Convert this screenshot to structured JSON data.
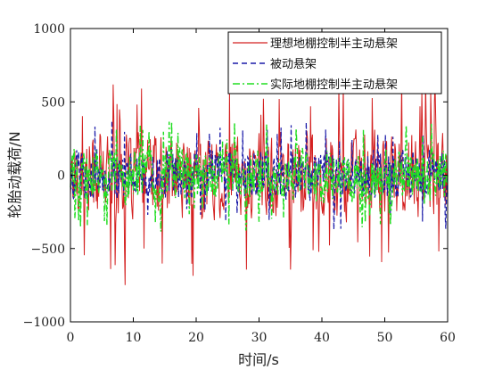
{
  "chart_data": {
    "type": "line",
    "xlabel": "时间/s",
    "ylabel": "轮胎动载荷/N",
    "xlim": [
      0,
      60
    ],
    "ylim": [
      -1000,
      1000
    ],
    "xticks": [
      "0",
      "10",
      "20",
      "30",
      "40",
      "50",
      "60"
    ],
    "yticks": [
      "1000",
      "500",
      "0",
      "−500",
      "−1000"
    ],
    "legend": "top-right",
    "grid": false,
    "sampling_note": "dense random oscillation sampled every 0.1 s",
    "series": [
      {
        "name": "理想地棚控制半主动悬架",
        "color": "#d42020",
        "style": "solid",
        "amplitude_peak": 850,
        "amplitude_typical": 350,
        "seed": 17
      },
      {
        "name": "被动悬架",
        "color": "#1a1aa8",
        "style": "dashed",
        "amplitude_peak": 480,
        "amplitude_typical": 200,
        "seed": 5
      },
      {
        "name": "实际地棚控制半主动悬架",
        "color": "#22dd22",
        "style": "dashdot",
        "amplitude_peak": 500,
        "amplitude_typical": 220,
        "seed": 29
      }
    ]
  }
}
